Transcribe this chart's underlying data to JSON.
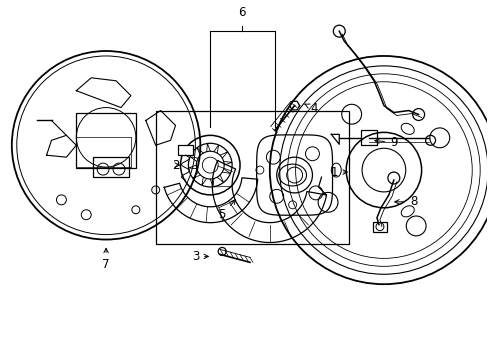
{
  "background_color": "#ffffff",
  "line_color": "#000000",
  "label_fontsize": 8.5,
  "figsize": [
    4.89,
    3.6
  ],
  "dpi": 100
}
